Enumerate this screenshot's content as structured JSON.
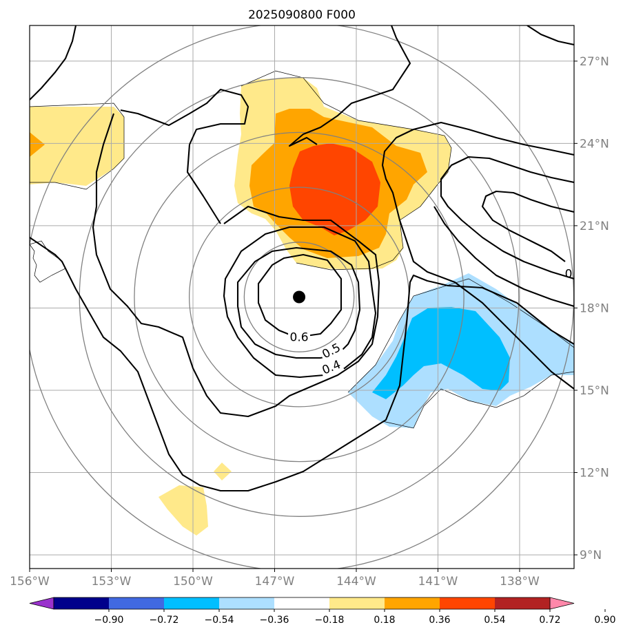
{
  "title": "2025090800 F000",
  "map": {
    "lon_range": [
      -156,
      -136
    ],
    "lat_range": [
      8.5,
      28.3
    ],
    "lon_ticks": [
      "156°W",
      "153°W",
      "150°W",
      "147°W",
      "144°W",
      "141°W",
      "138°W"
    ],
    "lat_ticks": [
      "27°N",
      "24°N",
      "21°N",
      "18°N",
      "15°N",
      "12°N",
      "9°N"
    ],
    "storm_center": {
      "lon": -146.1,
      "lat": 18.4
    },
    "range_rings_deg": [
      2,
      4,
      6,
      8,
      10
    ],
    "contour_labels": [
      {
        "text": "0.6",
        "lon": -146.1,
        "lat": 16.8,
        "angle": 0
      },
      {
        "text": "0.5",
        "lon": -144.9,
        "lat": 16.3,
        "angle": -28
      },
      {
        "text": "0.4",
        "lon": -144.9,
        "lat": 15.7,
        "angle": -22
      },
      {
        "text": "0",
        "lon": -136.2,
        "lat": 19.1,
        "angle": 0
      }
    ]
  },
  "colorbar": {
    "ticks": [
      "−0.90",
      "−0.72",
      "−0.54",
      "−0.36",
      "−0.18",
      "0.18",
      "0.36",
      "0.54",
      "0.72",
      "0.90"
    ],
    "colors": [
      "#9932CC",
      "#00008B",
      "#4169E1",
      "#00BFFF",
      "#ADDFFF",
      "#FFFFFF",
      "#FFE98A",
      "#FFA500",
      "#FF4500",
      "#B22222",
      "#FF88AA"
    ]
  },
  "shading": {
    "color_light_yellow": "#FFE98A",
    "color_orange": "#FFA500",
    "color_red": "#FF4500",
    "color_light_blue": "#ADDFFF",
    "color_blue": "#00BFFF"
  }
}
